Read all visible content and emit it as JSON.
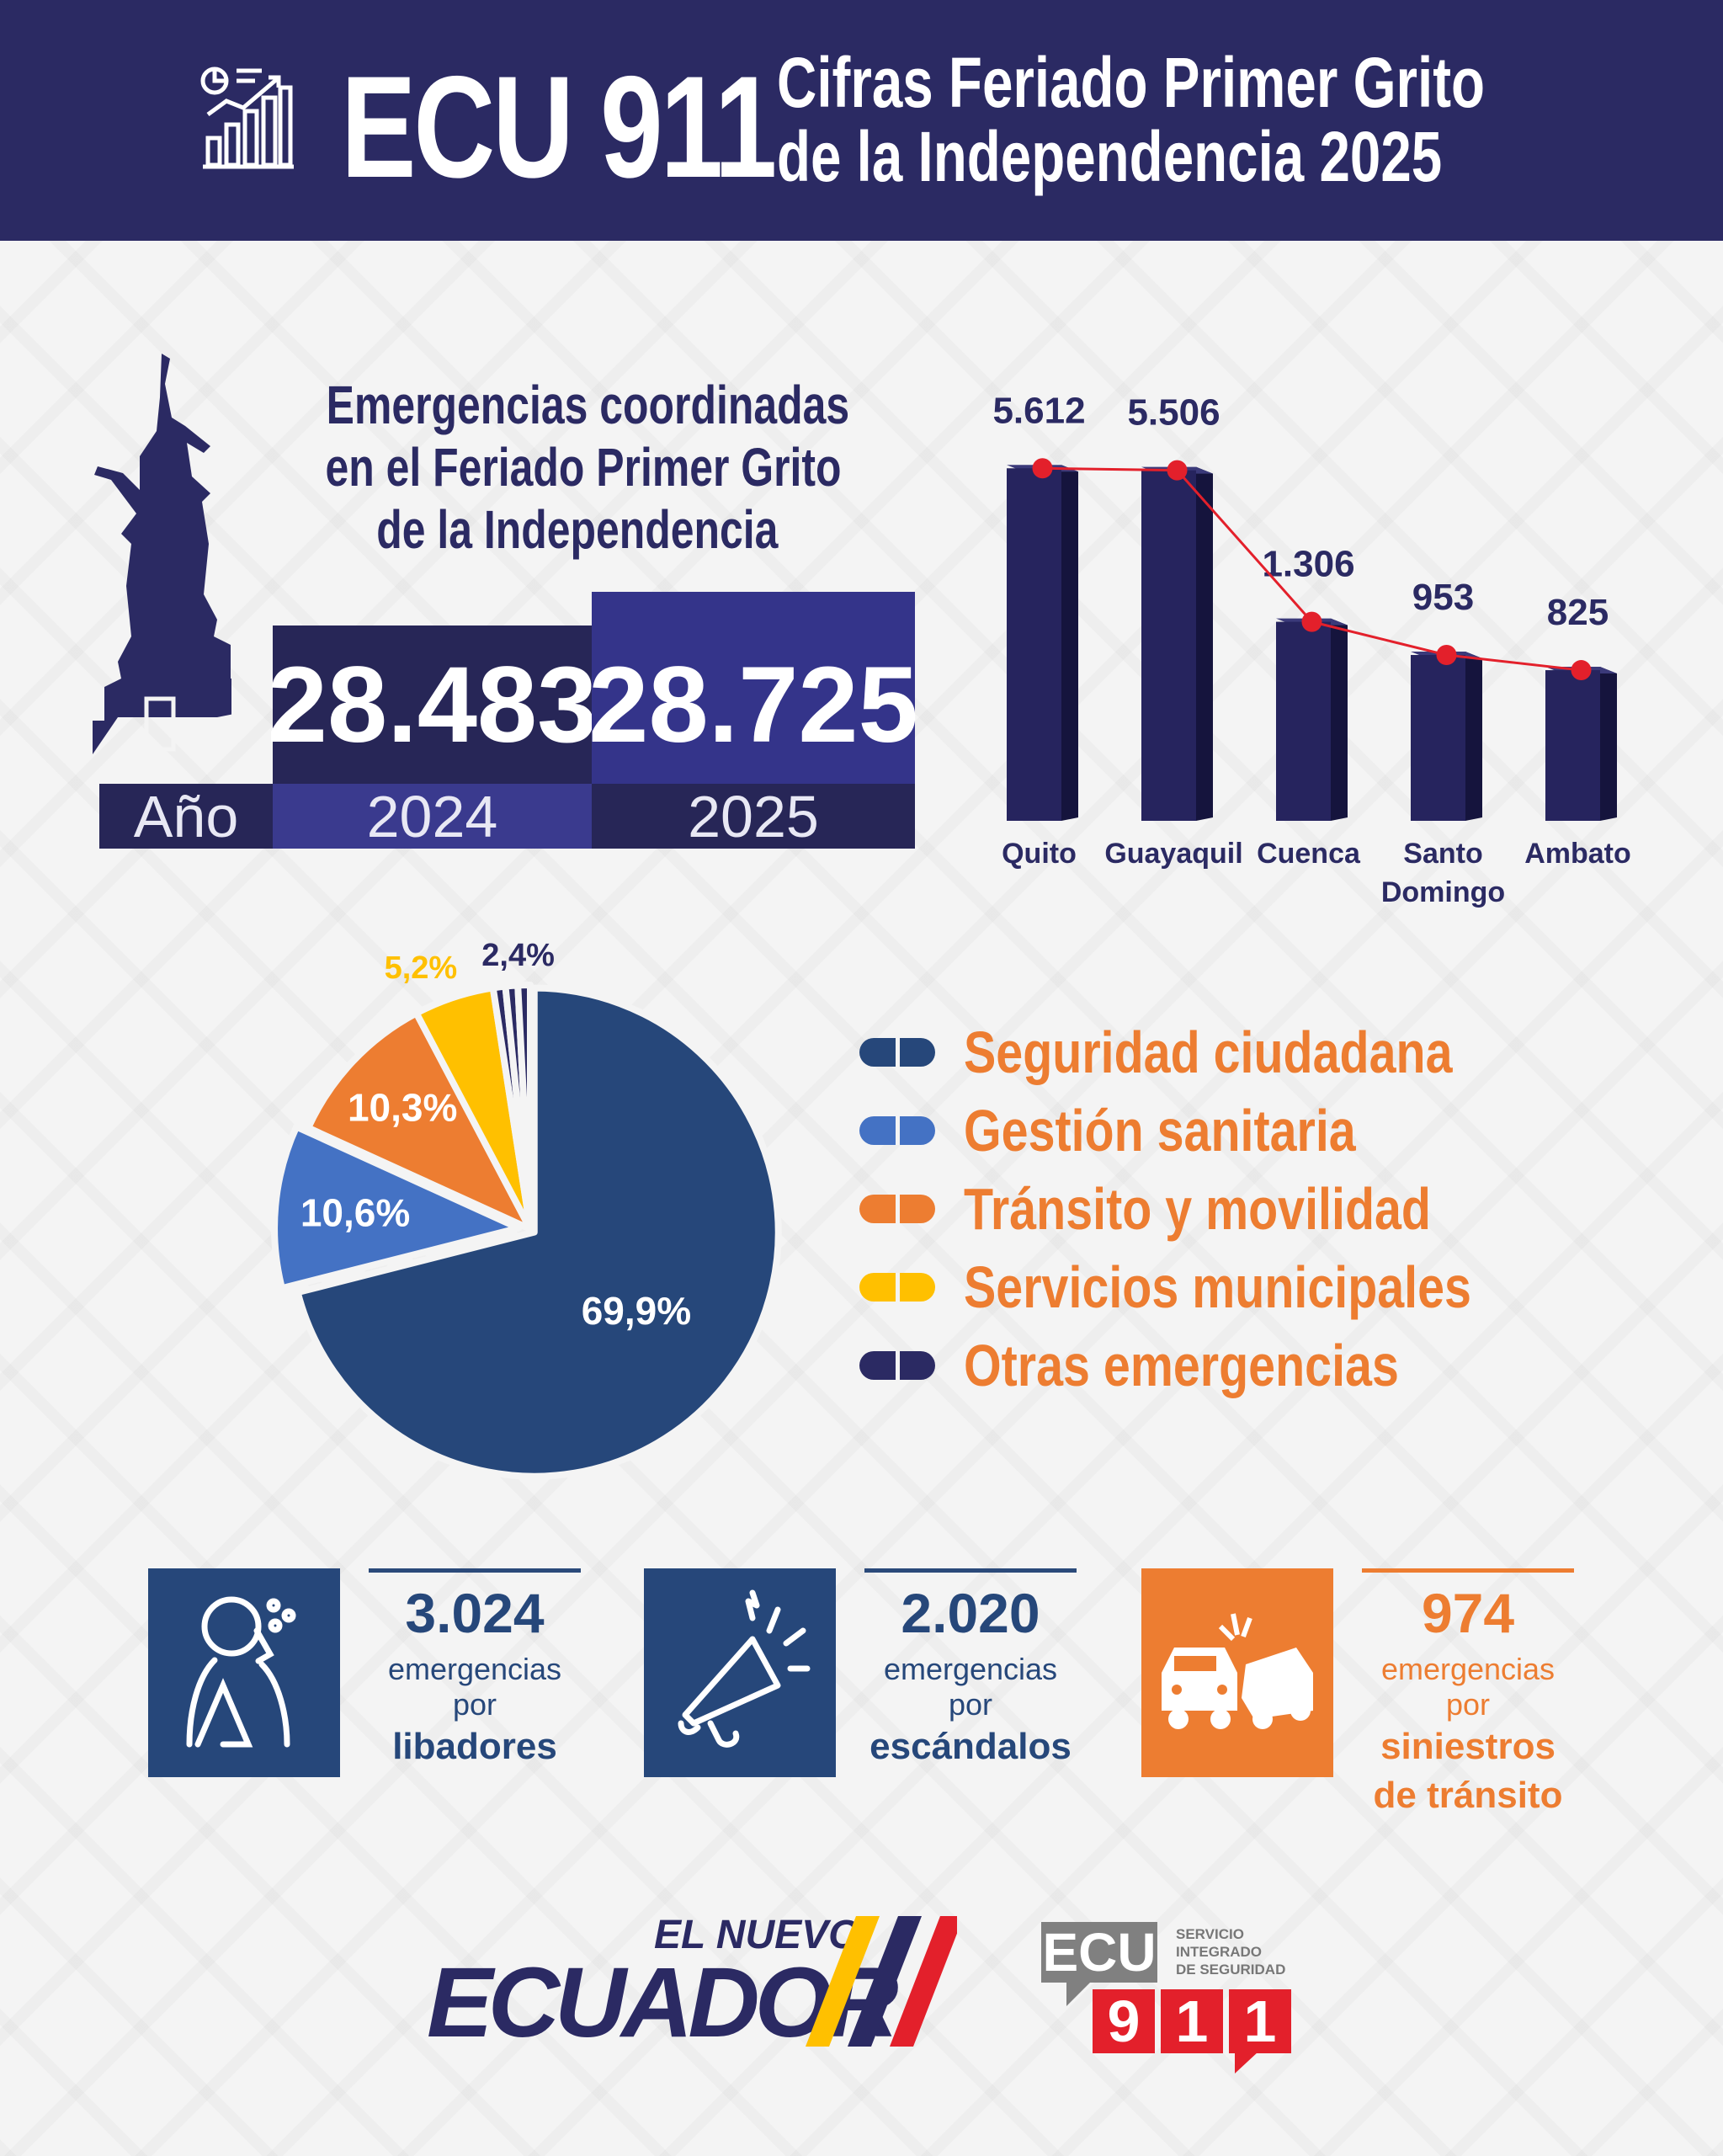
{
  "header": {
    "brand": "ECU 911",
    "title_line1": "Cifras Feriado Primer Grito",
    "title_line2": "de la Independencia 2025"
  },
  "summary": {
    "heading_lines": [
      "Emergencias coordinadas",
      "en el Feriado Primer Grito",
      "de la Independencia"
    ],
    "year_label": "Año",
    "years": [
      {
        "year": "2024",
        "value": "28.483"
      },
      {
        "year": "2025",
        "value": "28.725"
      }
    ]
  },
  "chart_data": [
    {
      "type": "bar",
      "title": "",
      "categories": [
        "Quito",
        "Guayaquil",
        "Cuenca",
        "Santo Domingo",
        "Ambato"
      ],
      "values": [
        5612,
        5506,
        1306,
        953,
        825
      ],
      "value_labels": [
        "5.612",
        "5.506",
        "1.306",
        "953",
        "825"
      ],
      "trend_line": true,
      "colors": {
        "bar": "#26245e",
        "line": "#e3202b"
      }
    },
    {
      "type": "pie",
      "categories": [
        "Seguridad ciudadana",
        "Gestión sanitaria",
        "Tránsito y movilidad",
        "Servicios municipales",
        "Otras emergencias"
      ],
      "values": [
        69.9,
        10.6,
        10.3,
        5.2,
        2.4
      ],
      "value_labels": [
        "69,9%",
        "10,6%",
        "10,3%",
        "5,2%",
        "2,4%"
      ],
      "colors": [
        "#26477a",
        "#4472c4",
        "#ed7d31",
        "#ffc000",
        "#2b2a63"
      ],
      "legend": "right"
    }
  ],
  "stats": [
    {
      "icon": "drinking-person-icon",
      "number": "3.024",
      "text": "emergencias por",
      "bold": "libadores",
      "color": "#26477a"
    },
    {
      "icon": "megaphone-icon",
      "number": "2.020",
      "text": "emergencias por",
      "bold": "escándalos",
      "color": "#26477a"
    },
    {
      "icon": "car-crash-icon",
      "number": "974",
      "text": "emergencias por",
      "bold": "siniestros de tránsito",
      "color": "#ed7d31"
    }
  ],
  "footer": {
    "logo1_small": "EL NUEVO",
    "logo1_big": "ECUADOR",
    "logo2_ecu": "ECU",
    "logo2_digits": [
      "9",
      "1",
      "1"
    ],
    "logo2_text": [
      "SERVICIO",
      "INTEGRADO",
      "DE SEGURIDAD"
    ]
  }
}
